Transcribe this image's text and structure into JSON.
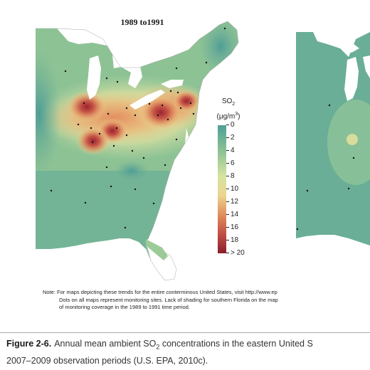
{
  "map": {
    "title": "1989 to1991",
    "legend": {
      "title_prefix": "SO",
      "title_sub": "2",
      "title_units": "(μg/m",
      "title_units_sup": "3",
      "title_units_close": ")",
      "ticks": [
        "0",
        "2",
        "4",
        "6",
        "8",
        "10",
        "12",
        "14",
        "16",
        "18",
        "> 20"
      ],
      "colors": [
        "#4f9f99",
        "#6db095",
        "#8cc193",
        "#b2d39a",
        "#d7e3a2",
        "#ebd58f",
        "#e9b273",
        "#e08d5d",
        "#cd6249",
        "#ae3a3a",
        "#8a1f2c"
      ]
    }
  },
  "note": {
    "line1": "Note: For maps depicting these trends for the entire conterminous United States, visit http://www.ep",
    "line2": "Dots on all maps represent monitoring sites. Lack of shading for southern Florida on the map",
    "line3": "of monitoring coverage in the 1989 to 1991 time period."
  },
  "caption": {
    "label": "Figure 2-6.",
    "line1_text": "Annual mean ambient SO",
    "line1_sub": "2",
    "line1_rest": " concentrations in the eastern United S",
    "line2": "2007–2009 observation periods (U.S. EPA, 2010c)."
  }
}
